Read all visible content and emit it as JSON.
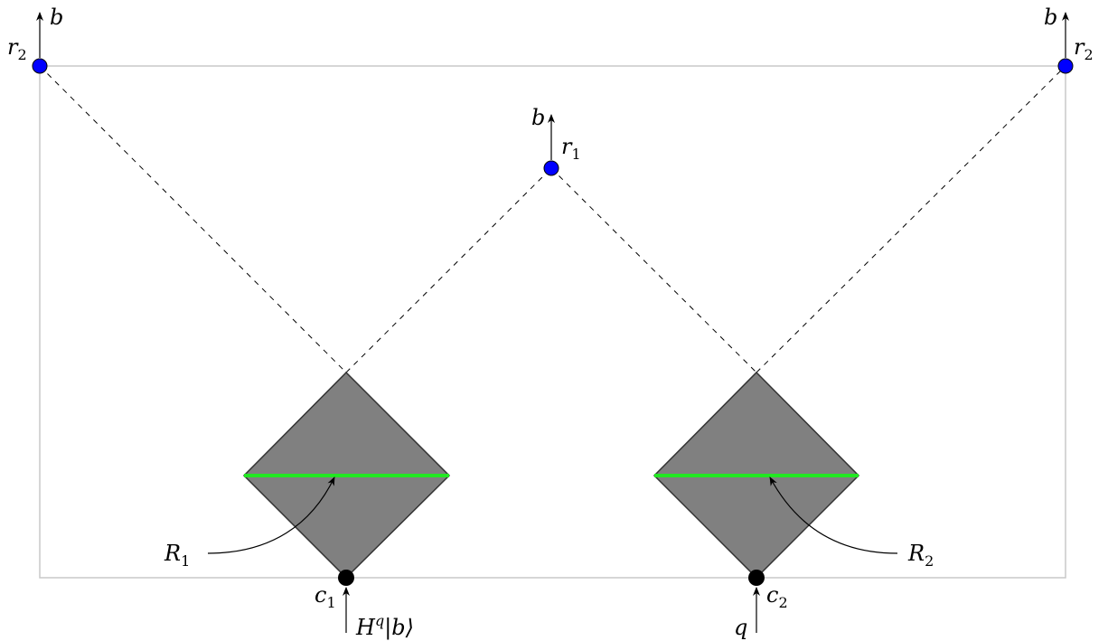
{
  "labels": {
    "r2_left": {
      "main": "r",
      "sub": "2"
    },
    "r2_right": {
      "main": "r",
      "sub": "2"
    },
    "r1": {
      "main": "r",
      "sub": "1"
    },
    "b_left": "b",
    "b_mid": "b",
    "b_right": "b",
    "R1": {
      "main": "R",
      "sub": "1"
    },
    "R2": {
      "main": "R",
      "sub": "2"
    },
    "c1": {
      "main": "c",
      "sub": "1"
    },
    "c2": {
      "main": "c",
      "sub": "2"
    },
    "input_left": {
      "main": "H",
      "sup": "q",
      "ket": "|b⟩"
    },
    "input_right": "q"
  },
  "colors": {
    "node_blue": "#0000ff",
    "node_black": "#000000",
    "diamond_fill": "#808080",
    "highlight_bar": "#22e822",
    "frame": "#c8c8c8"
  }
}
